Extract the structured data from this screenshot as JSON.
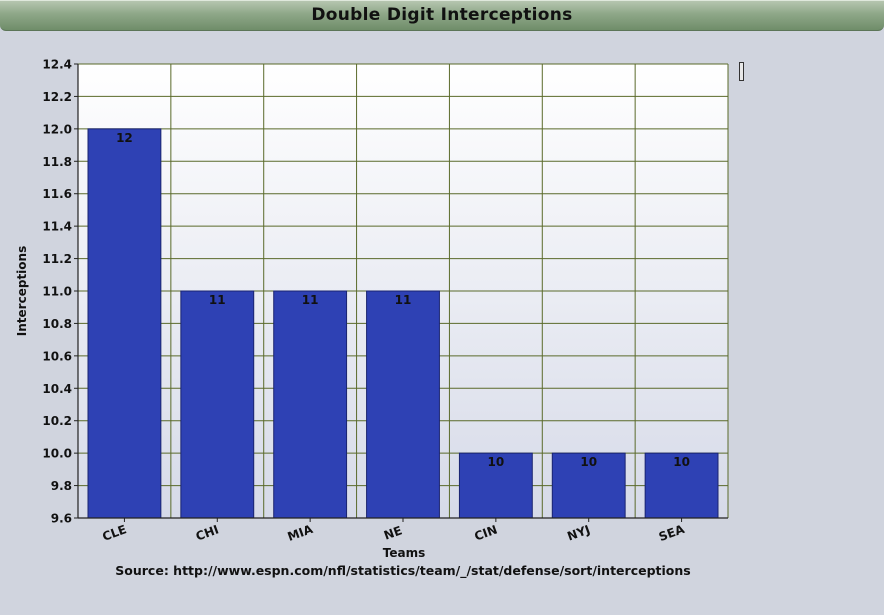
{
  "title": "Double Digit Interceptions",
  "source": "Source: http://www.espn.com/nfl/statistics/team/_/stat/defense/sort/interceptions",
  "colors": {
    "bar": "#2e41b4",
    "grid": "#5a6a2a"
  },
  "chart_data": {
    "type": "bar",
    "title": "Double Digit Interceptions",
    "xlabel": "Teams",
    "ylabel": "Interceptions",
    "categories": [
      "CLE",
      "CHI",
      "MIA",
      "NE",
      "CIN",
      "NYJ",
      "SEA"
    ],
    "values": [
      12,
      11,
      11,
      11,
      10,
      10,
      10
    ],
    "data_labels": [
      "12",
      "11",
      "11",
      "11",
      "10",
      "10",
      "10"
    ],
    "ylim": [
      9.6,
      12.4
    ],
    "yticks": [
      "12.4",
      "12.2",
      "12.0",
      "11.8",
      "11.6",
      "11.4",
      "11.2",
      "11.0",
      "10.8",
      "10.6",
      "10.4",
      "10.2",
      "10.0",
      "9.8",
      "9.6"
    ],
    "grid": true,
    "legend": "none"
  }
}
